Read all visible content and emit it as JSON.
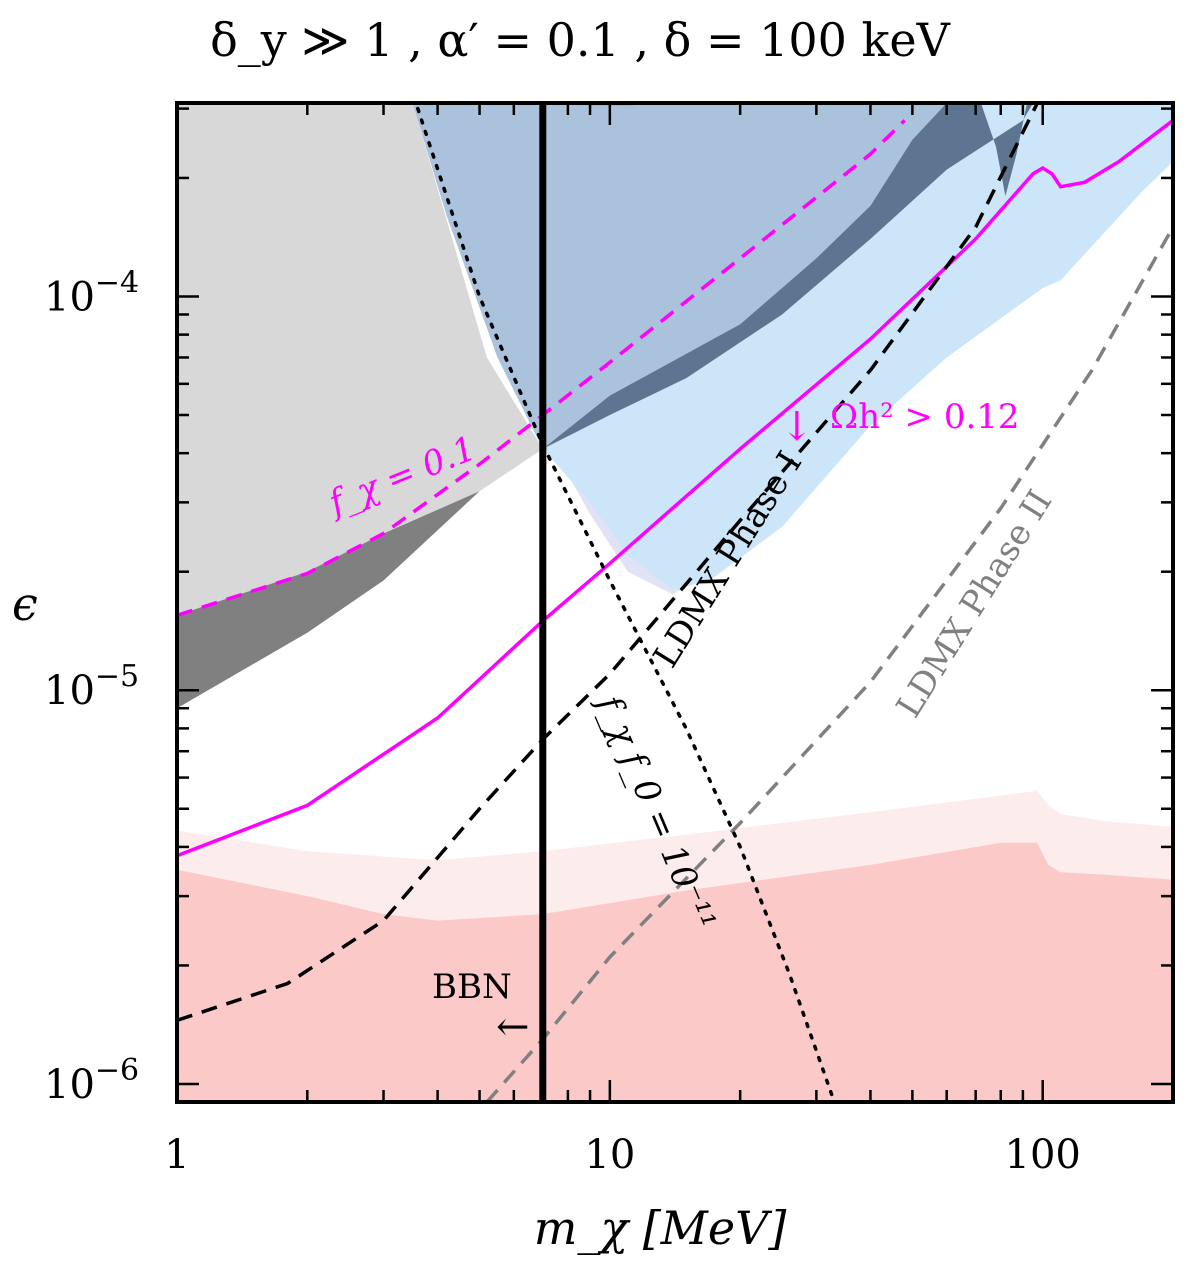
{
  "chart_data": {
    "type": "line",
    "title": "δ_y ≫ 1 ,  α′ = 0.1 ,  δ = 100 keV",
    "xlabel": "m_χ [MeV]",
    "ylabel": "ϵ",
    "xscale": "log",
    "yscale": "log",
    "xlim": [
      1,
      200
    ],
    "ylim": [
      9e-07,
      0.00031
    ],
    "x_ticks": [
      {
        "value": 1,
        "label": "1"
      },
      {
        "value": 10,
        "label": "10"
      },
      {
        "value": 100,
        "label": "100"
      }
    ],
    "y_ticks": [
      {
        "value": 1e-06,
        "mantissa": "10",
        "exponent": "−6"
      },
      {
        "value": 1e-05,
        "mantissa": "10",
        "exponent": "−5"
      },
      {
        "value": 0.0001,
        "mantissa": "10",
        "exponent": "−4"
      }
    ],
    "regions": [
      {
        "name": "light-gray-excluded",
        "color": "#d8d8d8",
        "points": [
          [
            1,
            0.00031
          ],
          [
            3.5,
            0.00031
          ],
          [
            5.2,
            7e-05
          ],
          [
            7,
            4.1e-05
          ],
          [
            5,
            3.2e-05
          ],
          [
            3,
            2.5e-05
          ],
          [
            2,
            2e-05
          ],
          [
            1,
            1.55e-05
          ]
        ]
      },
      {
        "name": "dark-gray-excluded",
        "color": "#808080",
        "points": [
          [
            1,
            1.55e-05
          ],
          [
            2,
            2e-05
          ],
          [
            3,
            2.5e-05
          ],
          [
            5,
            3.2e-05
          ],
          [
            7,
            4.1e-05
          ],
          [
            5,
            3.2e-05
          ],
          [
            3,
            1.9e-05
          ],
          [
            2,
            1.4e-05
          ],
          [
            1,
            9e-06
          ]
        ]
      },
      {
        "name": "lavender-band",
        "color": "#e2e2f7",
        "points": [
          [
            3.5,
            0.00031
          ],
          [
            200,
            0.00031
          ],
          [
            200,
            0.00026
          ],
          [
            170,
            0.00022
          ],
          [
            110,
            0.00013
          ],
          [
            100,
            0.00012
          ],
          [
            60,
            8e-05
          ],
          [
            40,
            5.5e-05
          ],
          [
            25,
            3e-05
          ],
          [
            17,
            2.05e-05
          ],
          [
            14,
            1.75e-05
          ],
          [
            11,
            2e-05
          ],
          [
            9,
            2.8e-05
          ],
          [
            7.5,
            4e-05
          ],
          [
            5.5,
            7.5e-05
          ],
          [
            4.2,
            0.00016
          ]
        ]
      },
      {
        "name": "light-blue-excluded",
        "color": "#cde5f8",
        "points": [
          [
            3.5,
            0.00031
          ],
          [
            200,
            0.00031
          ],
          [
            200,
            0.00022
          ],
          [
            170,
            0.000185
          ],
          [
            110,
            0.00011
          ],
          [
            100,
            0.000105
          ],
          [
            60,
            7e-05
          ],
          [
            40,
            4.7e-05
          ],
          [
            25,
            2.6e-05
          ],
          [
            17,
            1.9e-05
          ],
          [
            14,
            1.8e-05
          ],
          [
            11,
            2.2e-05
          ],
          [
            9,
            3e-05
          ],
          [
            7,
            4.1e-05
          ],
          [
            5.5,
            7e-05
          ],
          [
            4.2,
            0.00016
          ]
        ]
      },
      {
        "name": "steel-blue-excluded",
        "color": "#aac2dc",
        "points": [
          [
            3.5,
            0.00031
          ],
          [
            60,
            0.00031
          ],
          [
            50,
            0.00025
          ],
          [
            40,
            0.00017
          ],
          [
            30,
            0.000125
          ],
          [
            20,
            8.5e-05
          ],
          [
            10,
            5.6e-05
          ],
          [
            7,
            4.1e-05
          ],
          [
            5.5,
            7e-05
          ],
          [
            4.2,
            0.00016
          ]
        ]
      },
      {
        "name": "dark-slate-excluded",
        "color": "#5d7590",
        "points": [
          [
            7,
            4.1e-05
          ],
          [
            10,
            5.6e-05
          ],
          [
            20,
            8.5e-05
          ],
          [
            30,
            0.000125
          ],
          [
            40,
            0.00017
          ],
          [
            50,
            0.00025
          ],
          [
            60,
            0.00031
          ],
          [
            72,
            0.00031
          ],
          [
            78,
            0.00024
          ],
          [
            82,
            0.00018
          ],
          [
            87,
            0.00023
          ],
          [
            92,
            0.00031
          ],
          [
            95,
            0.00031
          ],
          [
            90,
            0.00028
          ],
          [
            60,
            0.00021
          ],
          [
            40,
            0.00014
          ],
          [
            25,
            9e-05
          ],
          [
            15,
            6.2e-05
          ],
          [
            10,
            5e-05
          ]
        ]
      },
      {
        "name": "teal-blob",
        "color": "#8fb4b8",
        "points": [
          [
            8,
            0.00031
          ],
          [
            13,
            0.00031
          ],
          [
            11,
            0.000305
          ],
          [
            9,
            0.000305
          ]
        ]
      },
      {
        "name": "light-pink-band",
        "color": "#fdecec",
        "points": [
          [
            1,
            4.4e-06
          ],
          [
            2,
            3.9e-06
          ],
          [
            4,
            3.7e-06
          ],
          [
            7,
            3.9e-06
          ],
          [
            15,
            4.3e-06
          ],
          [
            40,
            4.9e-06
          ],
          [
            80,
            5.4e-06
          ],
          [
            97,
            5.55e-06
          ],
          [
            103,
            5.1e-06
          ],
          [
            110,
            4.85e-06
          ],
          [
            140,
            4.65e-06
          ],
          [
            200,
            4.5e-06
          ],
          [
            200,
            9e-07
          ],
          [
            1,
            9e-07
          ]
        ]
      },
      {
        "name": "pink-excluded",
        "color": "#fcc9c9",
        "points": [
          [
            1,
            3.5e-06
          ],
          [
            2,
            3e-06
          ],
          [
            3,
            2.7e-06
          ],
          [
            4,
            2.6e-06
          ],
          [
            7,
            2.7e-06
          ],
          [
            15,
            3.1e-06
          ],
          [
            40,
            3.6e-06
          ],
          [
            80,
            4.1e-06
          ],
          [
            97,
            4.1e-06
          ],
          [
            103,
            3.6e-06
          ],
          [
            110,
            3.45e-06
          ],
          [
            140,
            3.4e-06
          ],
          [
            200,
            3.3e-06
          ],
          [
            200,
            9e-07
          ],
          [
            1,
            9e-07
          ]
        ]
      }
    ],
    "series": [
      {
        "name": "relic-solid",
        "color": "#ff00ff",
        "dash": "solid",
        "points": [
          [
            1,
            3.8e-06
          ],
          [
            2,
            5.1e-06
          ],
          [
            4,
            8.5e-06
          ],
          [
            7,
            1.5e-05
          ],
          [
            10,
            2.1e-05
          ],
          [
            20,
            4.1e-05
          ],
          [
            40,
            7.8e-05
          ],
          [
            70,
            0.00014
          ],
          [
            95,
            0.000205
          ],
          [
            100,
            0.000212
          ],
          [
            105,
            0.000205
          ],
          [
            110,
            0.00019
          ],
          [
            125,
            0.000195
          ],
          [
            150,
            0.00022
          ],
          [
            200,
            0.00028
          ]
        ]
      },
      {
        "name": "f-chi-0.1-dashed",
        "color": "#ff00ff",
        "dash": "dashed",
        "points": [
          [
            1,
            1.55e-05
          ],
          [
            2,
            1.98e-05
          ],
          [
            3,
            2.5e-05
          ],
          [
            5,
            3.75e-05
          ],
          [
            7,
            5e-05
          ],
          [
            10,
            6.8e-05
          ],
          [
            20,
            0.000125
          ],
          [
            40,
            0.00023
          ],
          [
            48,
            0.00028
          ]
        ]
      },
      {
        "name": "ldmx-phase-1",
        "color": "#000000",
        "dash": "dashed",
        "points": [
          [
            1,
            1.45e-06
          ],
          [
            1.8,
            1.8e-06
          ],
          [
            3,
            2.6e-06
          ],
          [
            5,
            5e-06
          ],
          [
            7,
            7.5e-06
          ],
          [
            10,
            1.1e-05
          ],
          [
            20,
            2.7e-05
          ],
          [
            40,
            6.5e-05
          ],
          [
            70,
            0.00015
          ],
          [
            100,
            0.00033
          ]
        ]
      },
      {
        "name": "ldmx-phase-2",
        "color": "#808080",
        "dash": "dashed",
        "points": [
          [
            5.2,
            9e-07
          ],
          [
            7,
            1.3e-06
          ],
          [
            10,
            2.1e-06
          ],
          [
            20,
            4.6e-06
          ],
          [
            40,
            1.05e-05
          ],
          [
            80,
            2.9e-05
          ],
          [
            130,
            6.5e-05
          ],
          [
            200,
            0.00015
          ]
        ]
      },
      {
        "name": "f-chi-f0-dotted",
        "color": "#000000",
        "dash": "dotted",
        "points": [
          [
            3.6,
            0.0003
          ],
          [
            5,
            0.0001
          ],
          [
            7,
            4.2e-05
          ],
          [
            10,
            1.9e-05
          ],
          [
            15,
            8e-06
          ],
          [
            20,
            4e-06
          ],
          [
            26,
            1.9e-06
          ],
          [
            33,
            9e-07
          ]
        ]
      },
      {
        "name": "bbn-line",
        "color": "#000000",
        "dash": "solid",
        "points": [
          [
            7,
            9e-07
          ],
          [
            7,
            0.00031
          ]
        ]
      }
    ],
    "annotations": {
      "f_chi": "f_χ = 0.1",
      "omega": "Ωh² > 0.12",
      "ldmx1": "LDMX Phase I",
      "ldmx2": "LDMX Phase II",
      "fchif0": "f_χ f_0 = 10⁻¹¹",
      "bbn": "BBN",
      "bbn_arrow": "←",
      "omega_arrow": "↓"
    }
  }
}
